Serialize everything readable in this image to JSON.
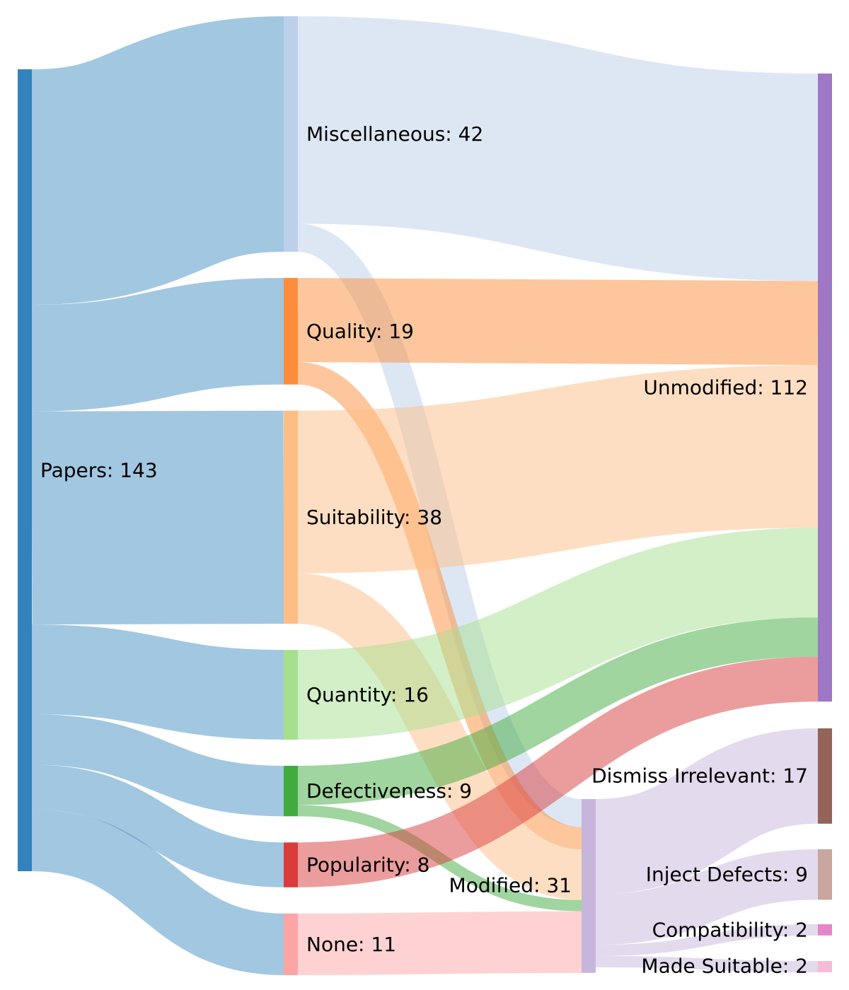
{
  "chart_data": {
    "type": "sankey",
    "nodes": [
      {
        "id": "papers",
        "label": "Papers: 143",
        "value": 143,
        "column": 0,
        "color": "#3182bd"
      },
      {
        "id": "misc",
        "label": "Miscellaneous: 42",
        "value": 42,
        "column": 1,
        "color": "#bcd0ea"
      },
      {
        "id": "quality",
        "label": "Quality: 19",
        "value": 19,
        "column": 1,
        "color": "#fd8d3c"
      },
      {
        "id": "suitability",
        "label": "Suitability: 38",
        "value": 38,
        "column": 1,
        "color": "#fdbe85"
      },
      {
        "id": "quantity",
        "label": "Quantity: 16",
        "value": 16,
        "column": 1,
        "color": "#a6e08f"
      },
      {
        "id": "defectiveness",
        "label": "Defectiveness: 9",
        "value": 9,
        "column": 1,
        "color": "#41ab3f"
      },
      {
        "id": "popularity",
        "label": "Popularity: 8",
        "value": 8,
        "column": 1,
        "color": "#d83c3c"
      },
      {
        "id": "none",
        "label": "None: 11",
        "value": 11,
        "column": 1,
        "color": "#fda5a5"
      },
      {
        "id": "modified",
        "label": "Modified: 31",
        "value": 31,
        "column": 2,
        "color": "#c7b6dc"
      },
      {
        "id": "unmodified",
        "label": "Unmodified: 112",
        "value": 112,
        "column": 3,
        "color": "#9e78c4"
      },
      {
        "id": "dismiss",
        "label": "Dismiss Irrelevant: 17",
        "value": 17,
        "column": 3,
        "color": "#946359"
      },
      {
        "id": "inject",
        "label": "Inject Defects: 9",
        "value": 9,
        "column": 3,
        "color": "#c9a69e"
      },
      {
        "id": "compat",
        "label": "Compatibility: 2",
        "value": 2,
        "column": 3,
        "color": "#e387c8"
      },
      {
        "id": "madesuit",
        "label": "Made Suitable: 2",
        "value": 2,
        "column": 3,
        "color": "#f6bcd6"
      }
    ],
    "links": [
      {
        "source": "papers",
        "target": "misc",
        "value": 42
      },
      {
        "source": "papers",
        "target": "quality",
        "value": 19
      },
      {
        "source": "papers",
        "target": "suitability",
        "value": 38
      },
      {
        "source": "papers",
        "target": "quantity",
        "value": 16
      },
      {
        "source": "papers",
        "target": "defectiveness",
        "value": 9
      },
      {
        "source": "papers",
        "target": "popularity",
        "value": 8
      },
      {
        "source": "papers",
        "target": "none",
        "value": 11
      },
      {
        "source": "misc",
        "target": "unmodified",
        "value": 37
      },
      {
        "source": "misc",
        "target": "modified",
        "value": 5
      },
      {
        "source": "quality",
        "target": "unmodified",
        "value": 15
      },
      {
        "source": "quality",
        "target": "modified",
        "value": 4
      },
      {
        "source": "suitability",
        "target": "unmodified",
        "value": 29
      },
      {
        "source": "suitability",
        "target": "modified",
        "value": 9
      },
      {
        "source": "quantity",
        "target": "unmodified",
        "value": 16
      },
      {
        "source": "defectiveness",
        "target": "unmodified",
        "value": 7
      },
      {
        "source": "defectiveness",
        "target": "modified",
        "value": 2
      },
      {
        "source": "popularity",
        "target": "unmodified",
        "value": 8
      },
      {
        "source": "none",
        "target": "modified",
        "value": 11
      },
      {
        "source": "modified",
        "target": "dismiss",
        "value": 17
      },
      {
        "source": "modified",
        "target": "inject",
        "value": 9
      },
      {
        "source": "modified",
        "target": "compat",
        "value": 2
      },
      {
        "source": "modified",
        "target": "madesuit",
        "value": 2
      }
    ]
  }
}
